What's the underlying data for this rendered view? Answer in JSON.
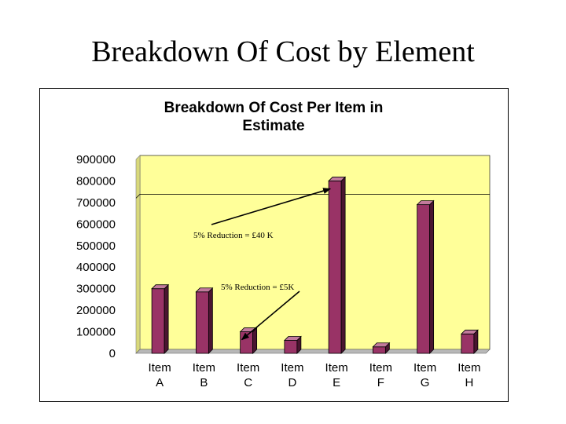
{
  "slide": {
    "title": "Breakdown Of Cost by Element"
  },
  "colors": {
    "plot_background": "#ffff99",
    "bar_front": "#993366",
    "bar_side": "#4a1530",
    "bar_top": "#c27a9c",
    "gridline": "#000000"
  },
  "chart_data": {
    "type": "bar",
    "title_lines": [
      "Breakdown Of Cost Per Item in",
      "Estimate"
    ],
    "categories": [
      [
        "Item",
        "A"
      ],
      [
        "Item",
        "B"
      ],
      [
        "Item",
        "C"
      ],
      [
        "Item",
        "D"
      ],
      [
        "Item",
        "E"
      ],
      [
        "Item",
        "F"
      ],
      [
        "Item",
        "G"
      ],
      [
        "Item",
        "H"
      ]
    ],
    "values": [
      300000,
      285000,
      100000,
      60000,
      800000,
      30000,
      690000,
      90000
    ],
    "ylim": [
      0,
      900000
    ],
    "yticks": [
      0,
      100000,
      200000,
      300000,
      400000,
      500000,
      600000,
      700000,
      800000,
      900000
    ],
    "ytick_labels": [
      "0",
      "100000",
      "200000",
      "300000",
      "400000",
      "500000",
      "600000",
      "700000",
      "800000",
      "900000"
    ],
    "reference_line": 720000,
    "style": "3d-bar",
    "legend": "none",
    "annotations": [
      {
        "text": "5% Reduction = £40 K",
        "points_to": "Item E"
      },
      {
        "text": "5% Reduction = £5K",
        "points_to": "Item C"
      }
    ]
  }
}
